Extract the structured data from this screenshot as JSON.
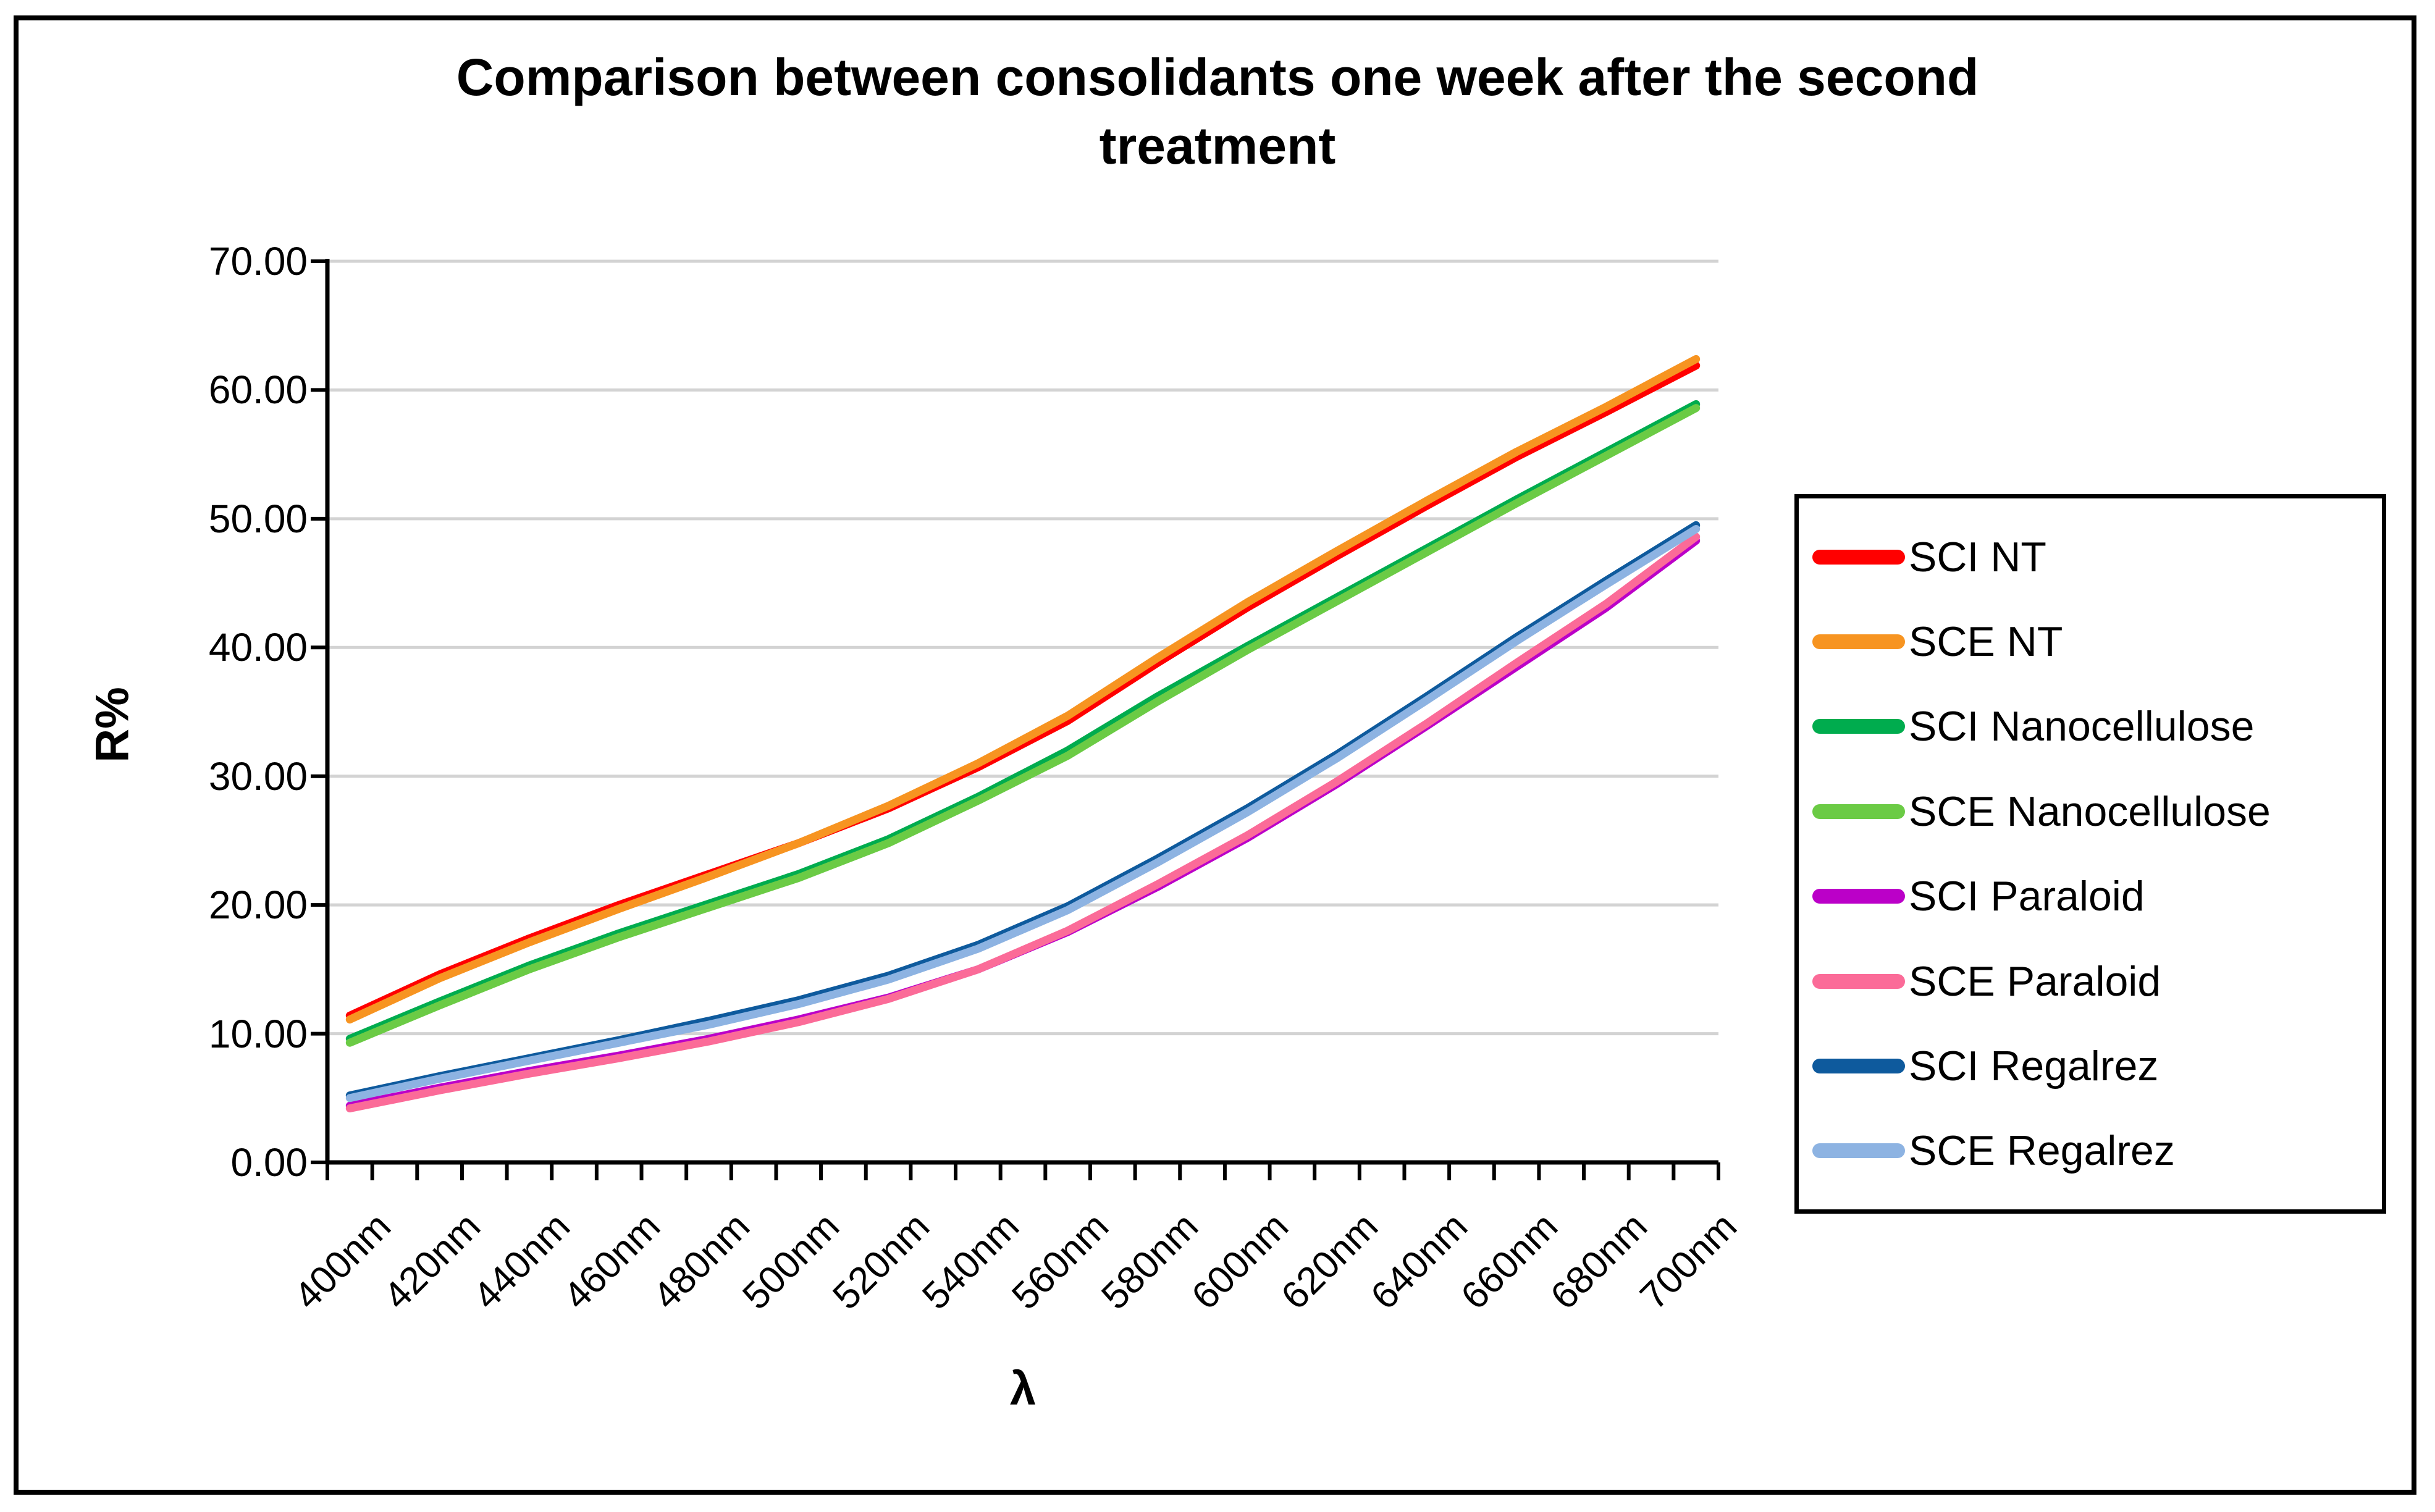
{
  "header": {
    "title": "Comparison between consolidants one week after the second treatment"
  },
  "chart_data": {
    "type": "line",
    "title": "Comparison between consolidants one week after the second treatment",
    "xlabel": "λ",
    "ylabel": "R%",
    "x_unit": "nm",
    "x": [
      400,
      420,
      440,
      460,
      480,
      500,
      520,
      540,
      560,
      580,
      600,
      620,
      640,
      660,
      680,
      700
    ],
    "x_tick_labels": [
      "400nm",
      "420nm",
      "440nm",
      "460nm",
      "480nm",
      "500nm",
      "520nm",
      "540nm",
      "560nm",
      "580nm",
      "600nm",
      "620nm",
      "640nm",
      "660nm",
      "680nm",
      "700nm"
    ],
    "minor_tick_step_nm": 10,
    "n_categories": 31,
    "ylim": [
      0,
      70
    ],
    "y_step": 10,
    "y_tick_labels": [
      "0.00",
      "10.00",
      "20.00",
      "30.00",
      "40.00",
      "50.00",
      "60.00",
      "70.00"
    ],
    "grid": "horizontal",
    "gridline_color": "#D3D3D3",
    "axis_color": "#000000",
    "legend_position": "right",
    "series": [
      {
        "name": "SCI Paraloid",
        "color": "#BB00C8",
        "values": [
          4.4,
          5.8,
          7.1,
          8.3,
          9.6,
          11.1,
          12.8,
          15.0,
          17.9,
          21.4,
          25.2,
          29.4,
          33.9,
          38.5,
          43.1,
          48.3
        ]
      },
      {
        "name": "SCE Paraloid",
        "color": "#FB6B98",
        "values": [
          4.2,
          5.6,
          6.9,
          8.1,
          9.4,
          10.9,
          12.7,
          15.0,
          18.0,
          21.6,
          25.4,
          29.6,
          34.1,
          38.8,
          43.4,
          48.6
        ]
      },
      {
        "name": "SCI Regalrez",
        "color": "#0E5A9D",
        "values": [
          5.2,
          6.7,
          8.1,
          9.5,
          11.0,
          12.6,
          14.5,
          16.9,
          19.9,
          23.6,
          27.5,
          31.7,
          36.2,
          40.8,
          45.2,
          49.5
        ]
      },
      {
        "name": "SCE Regalrez",
        "color": "#8DB3E2",
        "values": [
          5.0,
          6.5,
          7.9,
          9.3,
          10.7,
          12.3,
          14.2,
          16.6,
          19.6,
          23.3,
          27.2,
          31.4,
          35.9,
          40.5,
          44.9,
          49.2
        ]
      },
      {
        "name": "SCI Nanocellulose",
        "color": "#00AC4E",
        "values": [
          9.6,
          12.5,
          15.3,
          17.8,
          20.1,
          22.4,
          25.1,
          28.4,
          32.0,
          36.2,
          40.1,
          43.9,
          47.7,
          51.5,
          55.2,
          58.9
        ]
      },
      {
        "name": "SCE Nanocellulose",
        "color": "#6BCB45",
        "values": [
          9.3,
          12.2,
          15.0,
          17.5,
          19.8,
          22.1,
          24.8,
          28.1,
          31.6,
          35.8,
          39.8,
          43.6,
          47.4,
          51.2,
          54.9,
          58.6
        ]
      },
      {
        "name": "SCI NT",
        "color": "#FF0000",
        "values": [
          11.4,
          14.6,
          17.4,
          20.0,
          22.4,
          24.8,
          27.5,
          30.7,
          34.3,
          38.8,
          43.1,
          47.1,
          51.0,
          54.8,
          58.3,
          61.9
        ]
      },
      {
        "name": "SCE NT",
        "color": "#F79421",
        "values": [
          11.1,
          14.3,
          17.1,
          19.7,
          22.2,
          24.8,
          27.7,
          31.0,
          34.7,
          39.2,
          43.5,
          47.5,
          51.4,
          55.2,
          58.7,
          62.4
        ]
      }
    ],
    "legend_order": [
      "SCI NT",
      "SCE NT",
      "SCI Nanocellulose",
      "SCE Nanocellulose",
      "SCI Paraloid",
      "SCE Paraloid",
      "SCI Regalrez",
      "SCE Regalrez"
    ]
  }
}
